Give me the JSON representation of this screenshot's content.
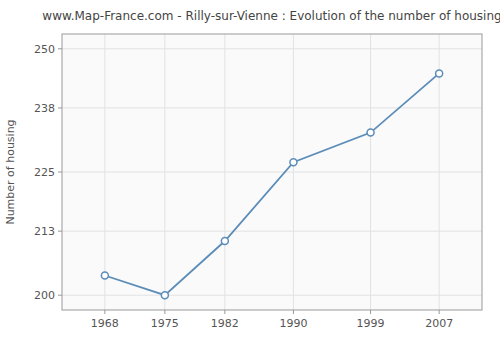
{
  "chart_data": {
    "type": "line",
    "title": "www.Map-France.com - Rilly-sur-Vienne : Evolution of the number of housing",
    "ylabel": "Number of housing",
    "x": [
      1968,
      1975,
      1982,
      1990,
      1999,
      2007
    ],
    "values": [
      204,
      200,
      211,
      227,
      233,
      245
    ],
    "xlim": [
      1963,
      2012
    ],
    "ylim": [
      197,
      253
    ],
    "xticks": [
      1968,
      1975,
      1982,
      1990,
      1999,
      2007
    ],
    "yticks": [
      200,
      213,
      225,
      238,
      250
    ],
    "color": "#5b8db8",
    "marker": "circle",
    "grid": true
  }
}
